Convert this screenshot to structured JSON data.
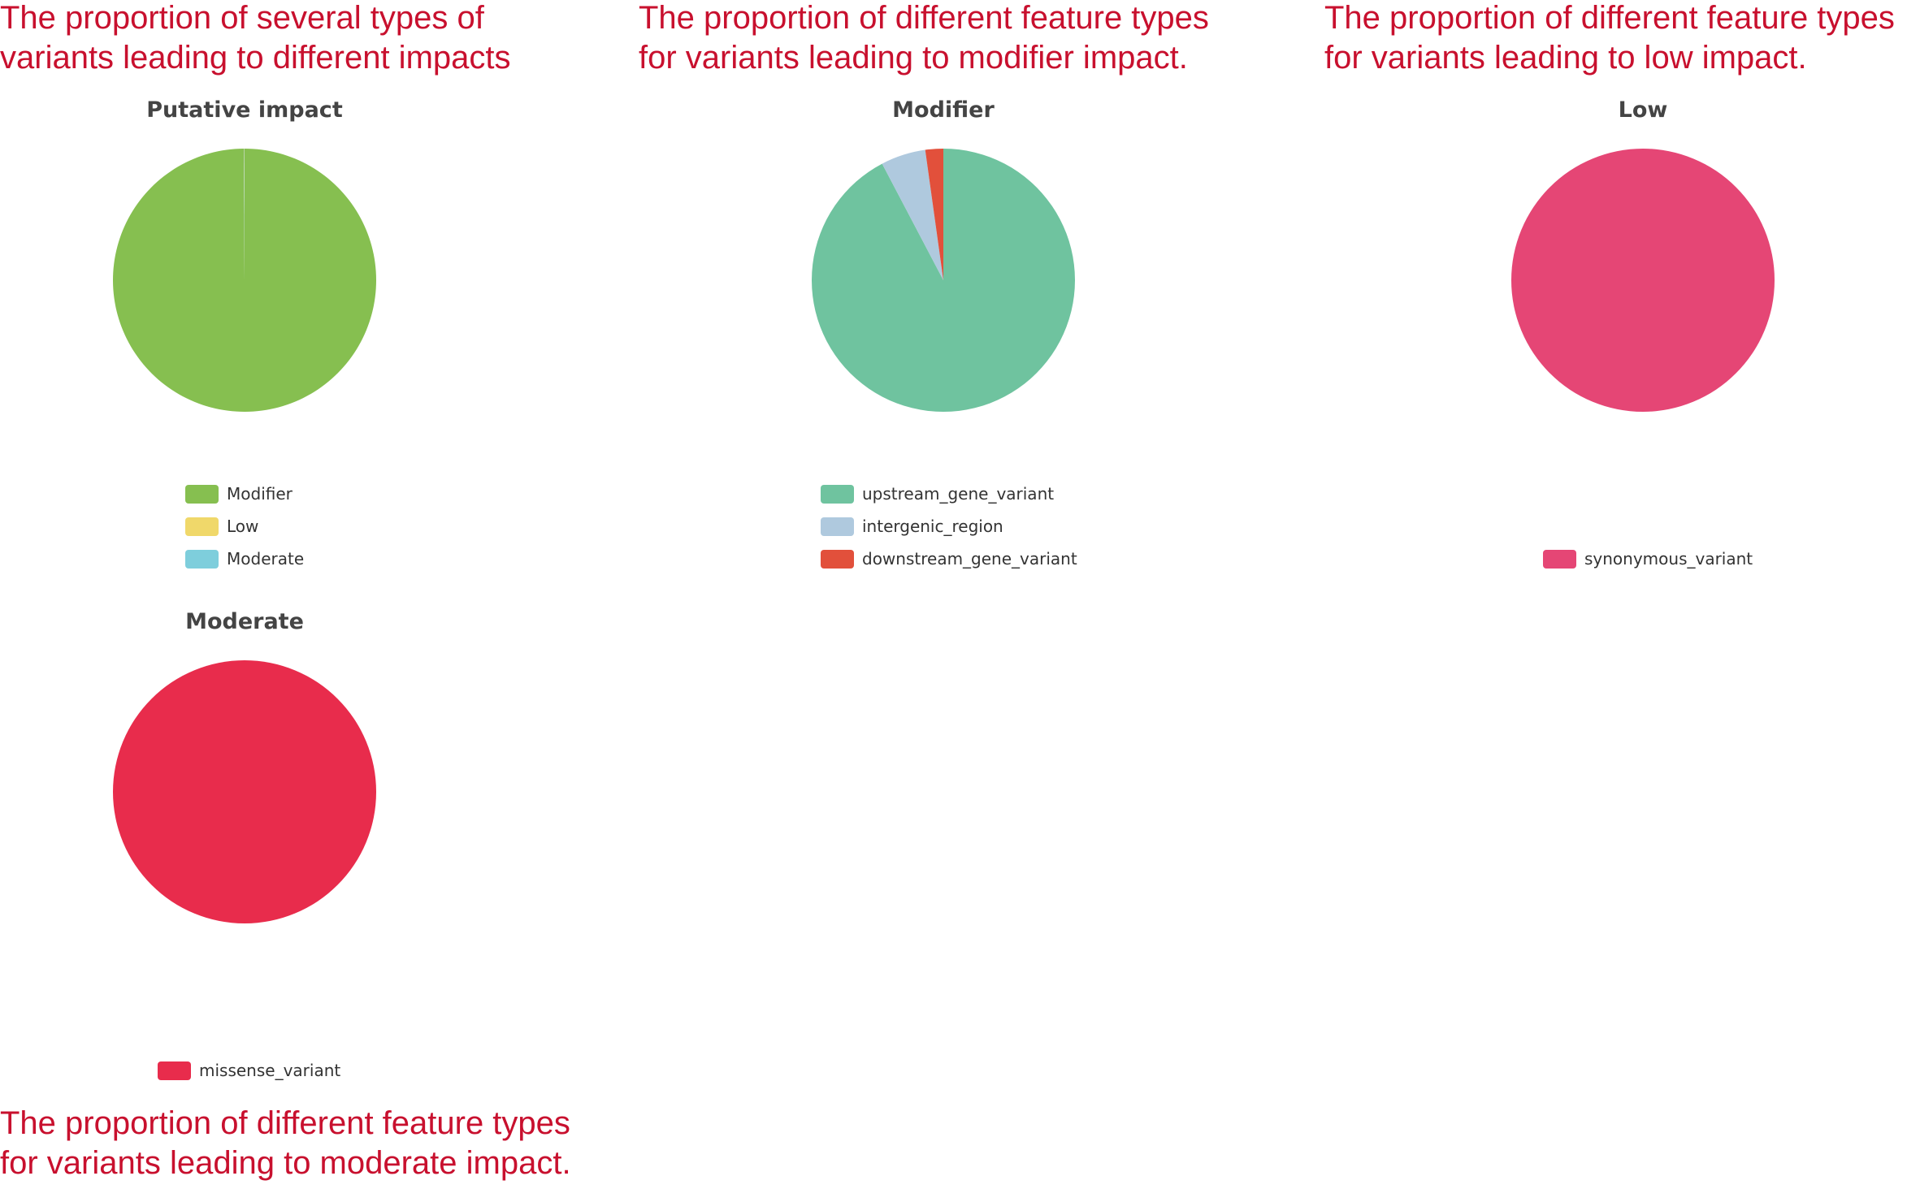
{
  "captions": {
    "impact": [
      "The proportion of several types of",
      "variants leading to different impacts"
    ],
    "modifier": [
      "The proportion of different feature types",
      "for variants leading to modifier impact."
    ],
    "low": [
      "The proportion of different feature types",
      "for variants leading to low impact."
    ],
    "moderate": [
      "The proportion of different feature types",
      "for variants leading to moderate impact."
    ]
  },
  "chart_data": [
    {
      "type": "pie",
      "title": "Putative impact",
      "categories": [
        "Modifier",
        "Low",
        "Moderate"
      ],
      "values": [
        99.9,
        0.05,
        0.05
      ],
      "colors": [
        "#86bf50",
        "#f0d86a",
        "#7ecedc"
      ],
      "legend": "bottom"
    },
    {
      "type": "pie",
      "title": "Modifier",
      "categories": [
        "upstream_gene_variant",
        "intergenic_region",
        "downstream_gene_variant"
      ],
      "values": [
        92.3,
        5.5,
        2.2
      ],
      "colors": [
        "#6fc39f",
        "#afc9de",
        "#e2503b"
      ],
      "legend": "bottom"
    },
    {
      "type": "pie",
      "title": "Low",
      "categories": [
        "synonymous_variant"
      ],
      "values": [
        100
      ],
      "colors": [
        "#e54675"
      ],
      "legend": "bottom"
    },
    {
      "type": "pie",
      "title": "Moderate",
      "categories": [
        "missense_variant"
      ],
      "values": [
        100
      ],
      "colors": [
        "#e82c4c"
      ],
      "legend": "bottom"
    }
  ]
}
